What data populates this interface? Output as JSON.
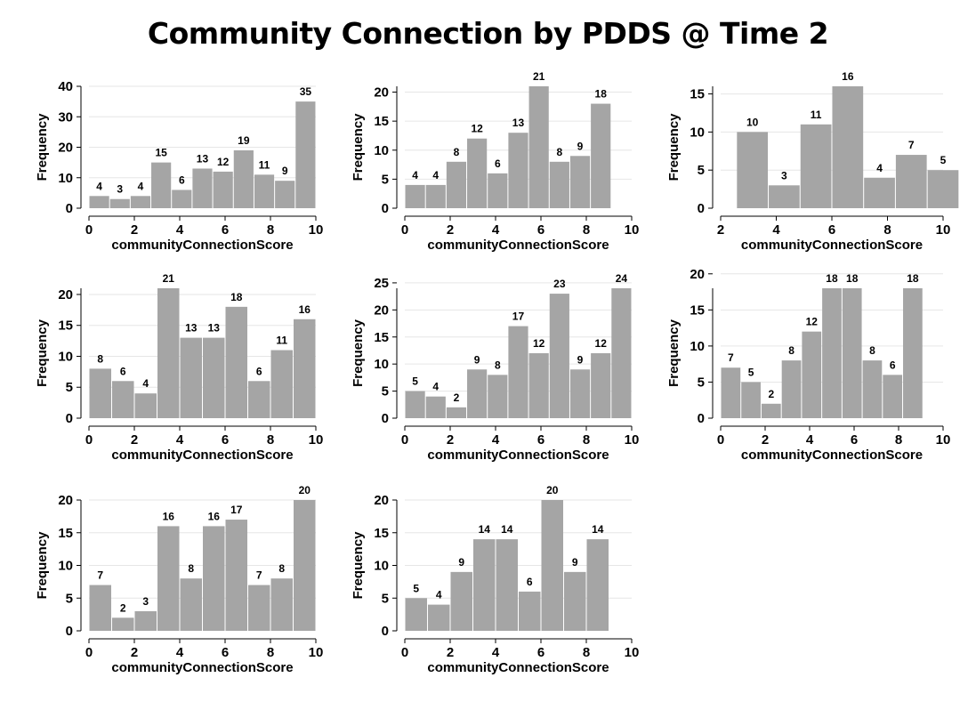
{
  "title": "Community Connection by PDDS @ Time 2",
  "colors": {
    "bar": "#a5a5a5",
    "grid": "#e6e6e6",
    "axis": "#000000"
  },
  "chart_data": [
    {
      "type": "bar",
      "xlabel": "communityConnectionScore",
      "ylabel": "Frequency",
      "xlim": [
        0,
        10
      ],
      "ylim": [
        0,
        40
      ],
      "xticks": [
        0,
        2,
        4,
        6,
        8,
        10
      ],
      "yticks": [
        0,
        10,
        20,
        30,
        40
      ],
      "bar_start": 0,
      "bar_width": 0.909,
      "grid": true,
      "values": [
        4,
        3,
        4,
        15,
        6,
        13,
        12,
        19,
        11,
        9,
        35
      ]
    },
    {
      "type": "bar",
      "xlabel": "communityConnectionScore",
      "ylabel": "Frequency",
      "xlim": [
        0,
        10
      ],
      "ylim": [
        0,
        21
      ],
      "xticks": [
        0,
        2,
        4,
        6,
        8,
        10
      ],
      "yticks": [
        0,
        5,
        10,
        15,
        20
      ],
      "bar_start": 0,
      "bar_width": 0.909,
      "grid": true,
      "values": [
        4,
        4,
        8,
        12,
        6,
        13,
        21,
        8,
        9,
        18
      ]
    },
    {
      "type": "bar",
      "xlabel": "communityConnectionScore",
      "ylabel": "Frequency",
      "xlim": [
        2,
        10
      ],
      "ylim": [
        0,
        16
      ],
      "xticks": [
        2,
        4,
        6,
        8,
        10
      ],
      "yticks": [
        0,
        5,
        10,
        15
      ],
      "bar_start": 2.57,
      "bar_width": 1.143,
      "grid": true,
      "values": [
        10,
        3,
        11,
        16,
        4,
        7,
        5
      ]
    },
    {
      "type": "bar",
      "xlabel": "communityConnectionScore",
      "ylabel": "Frequency",
      "xlim": [
        0,
        10
      ],
      "ylim": [
        0,
        21
      ],
      "xticks": [
        0,
        2,
        4,
        6,
        8,
        10
      ],
      "yticks": [
        0,
        5,
        10,
        15,
        20
      ],
      "bar_start": 0,
      "bar_width": 1.0,
      "grid": true,
      "values": [
        8,
        6,
        4,
        21,
        13,
        13,
        18,
        6,
        11,
        16
      ]
    },
    {
      "type": "bar",
      "xlabel": "communityConnectionScore",
      "ylabel": "Frequency",
      "xlim": [
        0,
        10
      ],
      "ylim": [
        0,
        24
      ],
      "xticks": [
        0,
        2,
        4,
        6,
        8,
        10
      ],
      "yticks": [
        0,
        5,
        10,
        15,
        20,
        25
      ],
      "bar_start": 0,
      "bar_width": 0.909,
      "grid": true,
      "values": [
        5,
        4,
        2,
        9,
        8,
        17,
        12,
        23,
        9,
        12,
        24
      ]
    },
    {
      "type": "bar",
      "xlabel": "communityConnectionScore",
      "ylabel": "Frequency",
      "xlim": [
        0,
        10
      ],
      "ylim": [
        0,
        18
      ],
      "xticks": [
        0,
        2,
        4,
        6,
        8,
        10
      ],
      "yticks": [
        0,
        5,
        10,
        15,
        20
      ],
      "bar_start": 0,
      "bar_width": 0.909,
      "grid": true,
      "values": [
        7,
        5,
        2,
        8,
        12,
        18,
        18,
        8,
        6,
        18
      ]
    },
    {
      "type": "bar",
      "xlabel": "communityConnectionScore",
      "ylabel": "Frequency",
      "xlim": [
        0,
        10
      ],
      "ylim": [
        0,
        20
      ],
      "xticks": [
        0,
        2,
        4,
        6,
        8,
        10
      ],
      "yticks": [
        0,
        5,
        10,
        15,
        20
      ],
      "bar_start": 0,
      "bar_width": 1.0,
      "grid": true,
      "values": [
        7,
        2,
        3,
        16,
        8,
        16,
        17,
        7,
        8,
        20
      ]
    },
    {
      "type": "bar",
      "xlabel": "communityConnectionScore",
      "ylabel": "Frequency",
      "xlim": [
        0,
        10
      ],
      "ylim": [
        0,
        20
      ],
      "xticks": [
        0,
        2,
        4,
        6,
        8,
        10
      ],
      "yticks": [
        0,
        5,
        10,
        15,
        20
      ],
      "bar_start": 0,
      "bar_width": 1.0,
      "grid": true,
      "values": [
        5,
        4,
        9,
        14,
        14,
        6,
        20,
        9,
        14
      ]
    }
  ]
}
